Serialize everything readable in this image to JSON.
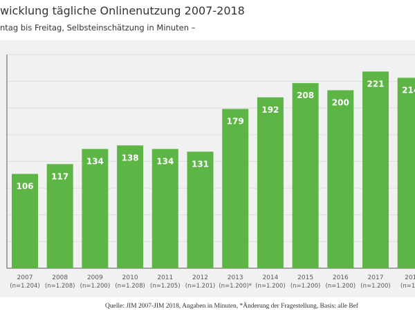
{
  "chart_data": {
    "type": "bar",
    "title": "wicklung tägliche Onlinenutzung 2007-2018",
    "subtitle": "ntag bis Freitag, Selbsteinschätzung in Minuten –",
    "categories": [
      "2007",
      "2008",
      "2009",
      "2010",
      "2011",
      "2012",
      "2013",
      "2014",
      "2015",
      "2016",
      "2017",
      "201"
    ],
    "sample_labels": [
      "(n=1.204)",
      "(n=1.208)",
      "(n=1.200)",
      "(n=1.208)",
      "(n=1.205)",
      "(n=1.201)",
      "(n=1.200)*",
      "(n=1.200)",
      "(n=1.200)",
      "(n=1.200)",
      "(n=1.200)",
      "(n=1.2"
    ],
    "values": [
      106,
      117,
      134,
      138,
      134,
      131,
      179,
      192,
      208,
      200,
      221,
      214
    ],
    "data_labels": [
      "106",
      "117",
      "134",
      "138",
      "134",
      "131",
      "179",
      "192",
      "208",
      "200",
      "221",
      "214"
    ],
    "ylim": [
      0,
      240
    ],
    "grid": true,
    "bar_color": "#5db545",
    "source": "Quelle: JIM 2007-JIM 2018, Angaben in Minuten, *Änderung der Fragestellung, Basis: alle Bef"
  }
}
